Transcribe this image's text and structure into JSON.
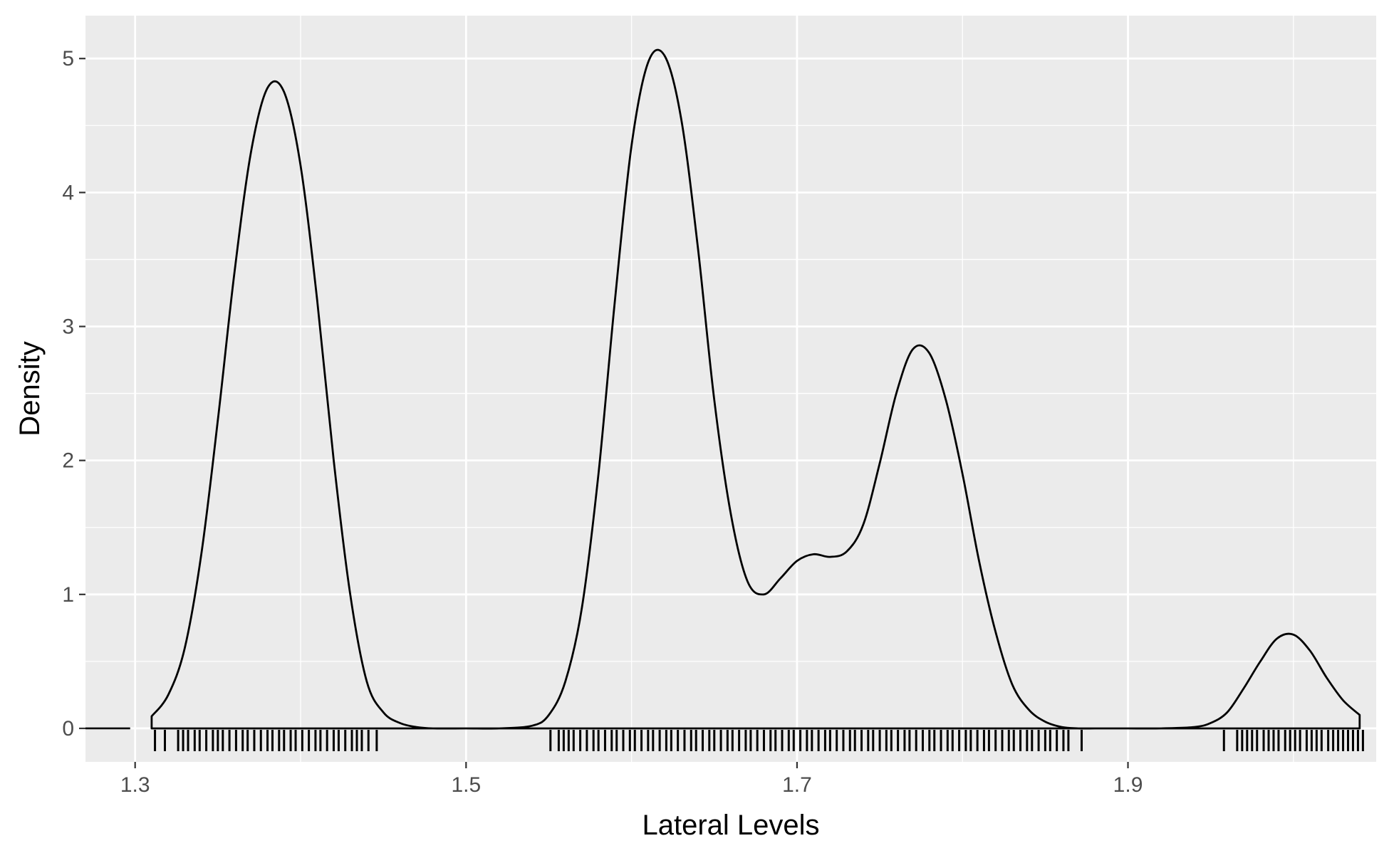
{
  "chart_data": {
    "type": "area",
    "title": "",
    "xlabel": "Lateral Levels",
    "ylabel": "Density",
    "xlim": [
      1.27,
      2.05
    ],
    "ylim": [
      -0.25,
      5.32
    ],
    "x_ticks": [
      1.3,
      1.5,
      1.7,
      1.9
    ],
    "x_tick_labels": [
      "1.3",
      "1.5",
      "1.7",
      "1.9"
    ],
    "x_minor_ticks": [
      1.4,
      1.6,
      1.8,
      2.0
    ],
    "y_ticks": [
      0,
      1,
      2,
      3,
      4,
      5
    ],
    "y_tick_labels": [
      "0",
      "1",
      "2",
      "3",
      "4",
      "5"
    ],
    "y_minor_ticks": [
      0.5,
      1.5,
      2.5,
      3.5,
      4.5
    ],
    "grid": true,
    "legend": "none",
    "colors": {
      "panel": "#EBEBEB",
      "grid": "#FFFFFF",
      "line": "#000000",
      "text": "#4D4D4D",
      "title": "#000000"
    },
    "series": [
      {
        "x": [
          1.31,
          1.32,
          1.33,
          1.34,
          1.35,
          1.36,
          1.37,
          1.38,
          1.39,
          1.4,
          1.41,
          1.42,
          1.43,
          1.44,
          1.45,
          1.46,
          1.47,
          1.48,
          1.5,
          1.52,
          1.54,
          1.55,
          1.56,
          1.57,
          1.58,
          1.59,
          1.6,
          1.61,
          1.62,
          1.63,
          1.64,
          1.65,
          1.66,
          1.67,
          1.68,
          1.69,
          1.7,
          1.71,
          1.72,
          1.73,
          1.74,
          1.75,
          1.76,
          1.77,
          1.78,
          1.79,
          1.8,
          1.81,
          1.82,
          1.83,
          1.84,
          1.85,
          1.86,
          1.87,
          1.88,
          1.89,
          1.9,
          1.92,
          1.94,
          1.95,
          1.96,
          1.97,
          1.98,
          1.99,
          2.0,
          2.01,
          2.02,
          2.03,
          2.04
        ],
        "y": [
          0.09,
          0.25,
          0.6,
          1.3,
          2.3,
          3.4,
          4.3,
          4.78,
          4.75,
          4.2,
          3.2,
          2.0,
          1.0,
          0.35,
          0.12,
          0.04,
          0.01,
          0.0,
          0.0,
          0.0,
          0.02,
          0.1,
          0.35,
          0.9,
          1.9,
          3.2,
          4.35,
          4.97,
          5.02,
          4.55,
          3.6,
          2.45,
          1.6,
          1.1,
          1.0,
          1.12,
          1.25,
          1.3,
          1.28,
          1.32,
          1.52,
          1.98,
          2.5,
          2.83,
          2.8,
          2.45,
          1.9,
          1.25,
          0.72,
          0.33,
          0.14,
          0.05,
          0.01,
          0.0,
          0.0,
          0.0,
          0.0,
          0.0,
          0.01,
          0.04,
          0.12,
          0.3,
          0.5,
          0.67,
          0.7,
          0.58,
          0.38,
          0.21,
          0.1
        ]
      }
    ],
    "left_baseline_segment": [
      1.27,
      1.297
    ],
    "rug": [
      1.312,
      1.318,
      1.326,
      1.329,
      1.332,
      1.336,
      1.339,
      1.343,
      1.347,
      1.35,
      1.353,
      1.357,
      1.361,
      1.365,
      1.368,
      1.372,
      1.376,
      1.38,
      1.383,
      1.387,
      1.39,
      1.394,
      1.397,
      1.401,
      1.405,
      1.409,
      1.412,
      1.416,
      1.42,
      1.423,
      1.427,
      1.431,
      1.434,
      1.437,
      1.441,
      1.446,
      1.551,
      1.556,
      1.559,
      1.562,
      1.565,
      1.569,
      1.573,
      1.577,
      1.58,
      1.584,
      1.588,
      1.591,
      1.595,
      1.599,
      1.602,
      1.606,
      1.61,
      1.613,
      1.617,
      1.621,
      1.624,
      1.628,
      1.632,
      1.636,
      1.639,
      1.643,
      1.647,
      1.65,
      1.654,
      1.658,
      1.661,
      1.665,
      1.669,
      1.672,
      1.676,
      1.68,
      1.684,
      1.687,
      1.691,
      1.695,
      1.698,
      1.702,
      1.706,
      1.709,
      1.713,
      1.717,
      1.72,
      1.724,
      1.728,
      1.732,
      1.735,
      1.739,
      1.743,
      1.746,
      1.75,
      1.754,
      1.757,
      1.761,
      1.765,
      1.768,
      1.772,
      1.776,
      1.78,
      1.783,
      1.787,
      1.791,
      1.794,
      1.798,
      1.802,
      1.805,
      1.809,
      1.813,
      1.816,
      1.82,
      1.824,
      1.828,
      1.831,
      1.835,
      1.839,
      1.842,
      1.846,
      1.85,
      1.853,
      1.857,
      1.861,
      1.864,
      1.872,
      1.958,
      1.966,
      1.969,
      1.972,
      1.975,
      1.978,
      1.982,
      1.985,
      1.988,
      1.991,
      1.995,
      1.998,
      2.001,
      2.004,
      2.008,
      2.011,
      2.014,
      2.017,
      2.021,
      2.024,
      2.027,
      2.03,
      2.033,
      2.036,
      2.039,
      2.042
    ]
  }
}
